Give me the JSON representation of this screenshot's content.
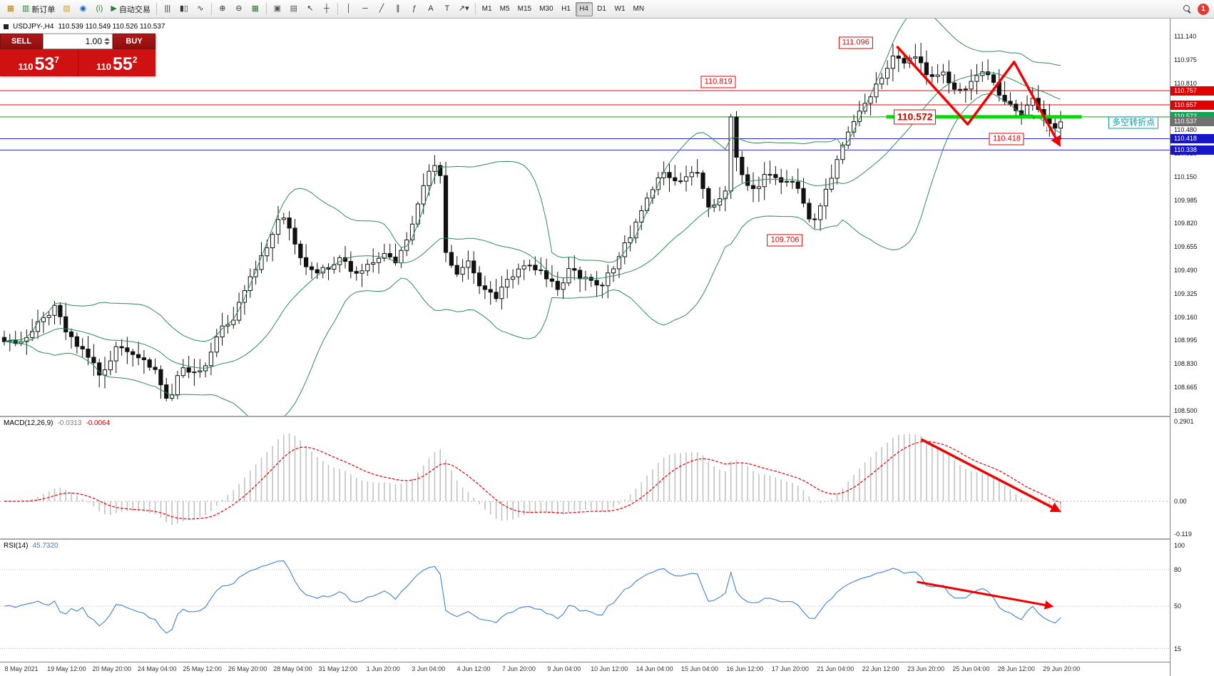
{
  "toolbar": {
    "new_order": "新订单",
    "auto_trading": "自动交易",
    "timeframes": [
      "M1",
      "M5",
      "M15",
      "M30",
      "H1",
      "H4",
      "D1",
      "W1",
      "MN"
    ],
    "active_timeframe": "H4",
    "badge": "1",
    "items": [
      {
        "t": "icon",
        "name": "chart-window-icon",
        "g": "▦",
        "c": "#b8860b"
      },
      {
        "t": "btn",
        "name": "new-order-button",
        "g": "▥",
        "gc": "#2e7d32",
        "label_key": "new_order"
      },
      {
        "t": "icon",
        "name": "profiles-icon",
        "g": "▨",
        "c": "#d4a017"
      },
      {
        "t": "icon",
        "name": "market-watch-icon",
        "g": "◉",
        "c": "#1565c0"
      },
      {
        "t": "icon",
        "name": "data-window-icon",
        "g": "(i)",
        "c": "#2e7d32"
      },
      {
        "t": "btn",
        "name": "auto-trading-button",
        "g": "▶",
        "gc": "#2e7d32",
        "label_key": "auto_trading"
      },
      {
        "t": "sep"
      },
      {
        "t": "icon",
        "name": "bar-chart-icon",
        "g": "|||",
        "c": "#333"
      },
      {
        "t": "icon",
        "name": "candlestick-chart-icon",
        "g": "▮▯",
        "c": "#333"
      },
      {
        "t": "icon",
        "name": "line-chart-icon",
        "g": "∿",
        "c": "#333"
      },
      {
        "t": "sep"
      },
      {
        "t": "icon",
        "name": "zoom-in-icon",
        "g": "⊕",
        "c": "#333"
      },
      {
        "t": "icon",
        "name": "zoom-out-icon",
        "g": "⊖",
        "c": "#333"
      },
      {
        "t": "icon",
        "name": "tile-windows-icon",
        "g": "▦",
        "c": "#2e7d32"
      },
      {
        "t": "sep"
      },
      {
        "t": "icon",
        "name": "cascade-windows-icon",
        "g": "▣",
        "c": "#555"
      },
      {
        "t": "icon",
        "name": "arrange-windows-icon",
        "g": "▤",
        "c": "#555"
      },
      {
        "t": "icon",
        "name": "cursor-icon",
        "g": "↖",
        "c": "#333"
      },
      {
        "t": "icon",
        "name": "crosshair-icon",
        "g": "┼",
        "c": "#333"
      },
      {
        "t": "sep"
      },
      {
        "t": "icon",
        "name": "vertical-line-icon",
        "g": "│",
        "c": "#333"
      },
      {
        "t": "icon",
        "name": "horizontal-line-icon",
        "g": "─",
        "c": "#333"
      },
      {
        "t": "icon",
        "name": "trendline-icon",
        "g": "╱",
        "c": "#333"
      },
      {
        "t": "icon",
        "name": "channel-icon",
        "g": "∥",
        "c": "#333"
      },
      {
        "t": "icon",
        "name": "fibonacci-icon",
        "g": "ƒ",
        "c": "#333"
      },
      {
        "t": "icon",
        "name": "text-icon",
        "g": "A",
        "c": "#333"
      },
      {
        "t": "icon",
        "name": "label-icon",
        "g": "T",
        "c": "#333"
      },
      {
        "t": "icon",
        "name": "arrow-tool-icon",
        "g": "↗▾",
        "c": "#333"
      },
      {
        "t": "sep"
      },
      {
        "t": "tf"
      },
      {
        "t": "spacer"
      },
      {
        "t": "mag",
        "name": "search-icon"
      },
      {
        "t": "badge",
        "name": "notification-badge"
      }
    ]
  },
  "trade_panel": {
    "sell_label": "SELL",
    "buy_label": "BUY",
    "volume": "1.00",
    "sell_prefix": "110",
    "sell_main": "53",
    "sell_pip": "7",
    "buy_prefix": "110",
    "buy_main": "55",
    "buy_pip": "2"
  },
  "chart": {
    "title": "USDJPY-,H4",
    "ohlc": "110.539 110.549 110.526 110.537"
  },
  "macd": {
    "label": "MACD(12,26,9)",
    "value_main": "-0.0313",
    "value_signal": "-0.0064",
    "scale": [
      "0.2901",
      "0.00",
      "-0.119"
    ]
  },
  "rsi": {
    "label": "RSI(14)",
    "value": "45.7320",
    "scale": [
      "100",
      "80",
      "50",
      "15"
    ],
    "levels": [
      80,
      50,
      15
    ]
  },
  "price_scale": {
    "ticks": [
      "111.140",
      "110.975",
      "110.810",
      "110.645",
      "110.480",
      "110.315",
      "110.150",
      "109.985",
      "109.820",
      "109.655",
      "109.490",
      "109.325",
      "109.160",
      "108.995",
      "108.830",
      "108.665",
      "108.500"
    ],
    "tags": [
      {
        "value": "110.757",
        "bg": "#e00000"
      },
      {
        "value": "110.657",
        "bg": "#e00000"
      },
      {
        "value": "110.572",
        "bg": "#00b050"
      },
      {
        "value": "110.537",
        "bg": "#707070"
      },
      {
        "value": "110.418",
        "bg": "#1616c8"
      },
      {
        "value": "110.338",
        "bg": "#1616c8"
      }
    ]
  },
  "time_axis": {
    "labels": [
      "8 May 2021",
      "19 May 12:00",
      "20 May 20:00",
      "24 May 04:00",
      "25 May 12:00",
      "26 May 20:00",
      "28 May 04:00",
      "31 May 12:00",
      "1 Jun 20:00",
      "3 Jun 04:00",
      "4 Jun 12:00",
      "7 Jun 20:00",
      "9 Jun 04:00",
      "10 Jun 12:00",
      "14 Jun 04:00",
      "15 Jun 04:00",
      "16 Jun 12:00",
      "17 Jun 20:00",
      "21 Jun 04:00",
      "22 Jun 12:00",
      "23 Jun 20:00",
      "25 Jun 04:00",
      "28 Jun 12:00",
      "29 Jun 20:00"
    ]
  },
  "annotations": [
    {
      "text": "111.096",
      "f": 0.806,
      "price": 111.095,
      "style": "red"
    },
    {
      "text": "110.819",
      "f": 0.676,
      "price": 110.818,
      "style": "red"
    },
    {
      "text": "110.572",
      "f": 0.862,
      "price": 110.573,
      "style": "red big"
    },
    {
      "text": "110.418",
      "f": 0.949,
      "price": 110.414,
      "style": "red"
    },
    {
      "text": "109.706",
      "f": 0.739,
      "price": 109.703,
      "style": "red"
    },
    {
      "text": "多空转折点",
      "f": 1.069,
      "price": 110.53,
      "style": "teal"
    }
  ],
  "chart_data": {
    "type": "candlestick",
    "symbol": "USDJPY-",
    "timeframe": "H4",
    "current": {
      "open": 110.539,
      "high": 110.549,
      "low": 110.526,
      "close": 110.537
    },
    "y_axis": {
      "min": 108.5,
      "max": 111.14,
      "tick_step": 0.165
    },
    "candles_count": 190,
    "last_close": 110.537,
    "close_path_anchors": [
      [
        0.0,
        108.97
      ],
      [
        0.019,
        109.0
      ],
      [
        0.037,
        109.15
      ],
      [
        0.048,
        109.22
      ],
      [
        0.063,
        109.0
      ],
      [
        0.078,
        108.9
      ],
      [
        0.092,
        108.75
      ],
      [
        0.107,
        108.95
      ],
      [
        0.122,
        108.9
      ],
      [
        0.132,
        108.85
      ],
      [
        0.143,
        108.8
      ],
      [
        0.152,
        108.6
      ],
      [
        0.157,
        108.56
      ],
      [
        0.165,
        108.8
      ],
      [
        0.18,
        108.75
      ],
      [
        0.191,
        108.8
      ],
      [
        0.202,
        109.05
      ],
      [
        0.217,
        109.15
      ],
      [
        0.231,
        109.4
      ],
      [
        0.242,
        109.55
      ],
      [
        0.253,
        109.7
      ],
      [
        0.261,
        109.88
      ],
      [
        0.272,
        109.75
      ],
      [
        0.283,
        109.55
      ],
      [
        0.294,
        109.45
      ],
      [
        0.305,
        109.5
      ],
      [
        0.319,
        109.6
      ],
      [
        0.33,
        109.45
      ],
      [
        0.341,
        109.5
      ],
      [
        0.356,
        109.6
      ],
      [
        0.37,
        109.55
      ],
      [
        0.381,
        109.7
      ],
      [
        0.396,
        110.1
      ],
      [
        0.407,
        110.22
      ],
      [
        0.413,
        110.15
      ],
      [
        0.418,
        109.62
      ],
      [
        0.429,
        109.45
      ],
      [
        0.44,
        109.55
      ],
      [
        0.451,
        109.35
      ],
      [
        0.466,
        109.3
      ],
      [
        0.48,
        109.45
      ],
      [
        0.491,
        109.55
      ],
      [
        0.502,
        109.5
      ],
      [
        0.513,
        109.45
      ],
      [
        0.524,
        109.35
      ],
      [
        0.535,
        109.5
      ],
      [
        0.546,
        109.45
      ],
      [
        0.557,
        109.4
      ],
      [
        0.568,
        109.4
      ],
      [
        0.579,
        109.55
      ],
      [
        0.59,
        109.7
      ],
      [
        0.601,
        109.85
      ],
      [
        0.612,
        110.05
      ],
      [
        0.623,
        110.2
      ],
      [
        0.634,
        110.1
      ],
      [
        0.645,
        110.15
      ],
      [
        0.656,
        110.2
      ],
      [
        0.667,
        109.95
      ],
      [
        0.678,
        110.0
      ],
      [
        0.684,
        110.05
      ],
      [
        0.689,
        110.72
      ],
      [
        0.694,
        110.2
      ],
      [
        0.7,
        110.12
      ],
      [
        0.711,
        110.05
      ],
      [
        0.722,
        110.2
      ],
      [
        0.733,
        110.1
      ],
      [
        0.744,
        110.15
      ],
      [
        0.755,
        110.0
      ],
      [
        0.766,
        109.8
      ],
      [
        0.777,
        110.05
      ],
      [
        0.788,
        110.25
      ],
      [
        0.799,
        110.45
      ],
      [
        0.81,
        110.6
      ],
      [
        0.821,
        110.75
      ],
      [
        0.832,
        110.85
      ],
      [
        0.843,
        111.0
      ],
      [
        0.854,
        110.95
      ],
      [
        0.865,
        111.0
      ],
      [
        0.876,
        110.85
      ],
      [
        0.886,
        110.9
      ],
      [
        0.897,
        110.8
      ],
      [
        0.908,
        110.75
      ],
      [
        0.919,
        110.85
      ],
      [
        0.93,
        110.9
      ],
      [
        0.941,
        110.75
      ],
      [
        0.952,
        110.65
      ],
      [
        0.963,
        110.6
      ],
      [
        0.974,
        110.7
      ],
      [
        0.985,
        110.55
      ],
      [
        0.993,
        110.5
      ],
      [
        1.0,
        110.537
      ]
    ],
    "overlays": {
      "bollinger": {
        "period": 20,
        "deviation": 2,
        "color": "#2e8b57"
      }
    },
    "horizontal_lines": [
      {
        "price": 110.757,
        "color": "#e80000"
      },
      {
        "price": 110.657,
        "color": "#e80000"
      },
      {
        "price": 110.572,
        "color": "#00aa00"
      },
      {
        "price": 110.418,
        "color": "#2828d8"
      },
      {
        "price": 110.338,
        "color": "#2828d8"
      }
    ],
    "green_segment": {
      "price": 110.572,
      "from_frac": 0.835,
      "to_frac": 1.02,
      "color": "#00dd00"
    },
    "indicators": [
      {
        "name": "MACD",
        "params": "12,26,9",
        "current_main": -0.0313,
        "current_signal": -0.0064,
        "scale_max": 0.2901,
        "scale_min": -0.119
      },
      {
        "name": "RSI",
        "params": "14",
        "current": 45.732,
        "levels": [
          80,
          50,
          15
        ]
      }
    ],
    "arrows": {
      "main": [
        [
          0.845,
          111.07
        ],
        [
          0.912,
          110.52
        ],
        [
          0.956,
          110.96
        ],
        [
          0.9985,
          110.38
        ]
      ],
      "macd": [
        [
          0.868,
          0.225
        ],
        [
          0.998,
          -0.034
        ]
      ],
      "rsi": [
        [
          0.864,
          70
        ],
        [
          0.991,
          50
        ]
      ]
    }
  }
}
